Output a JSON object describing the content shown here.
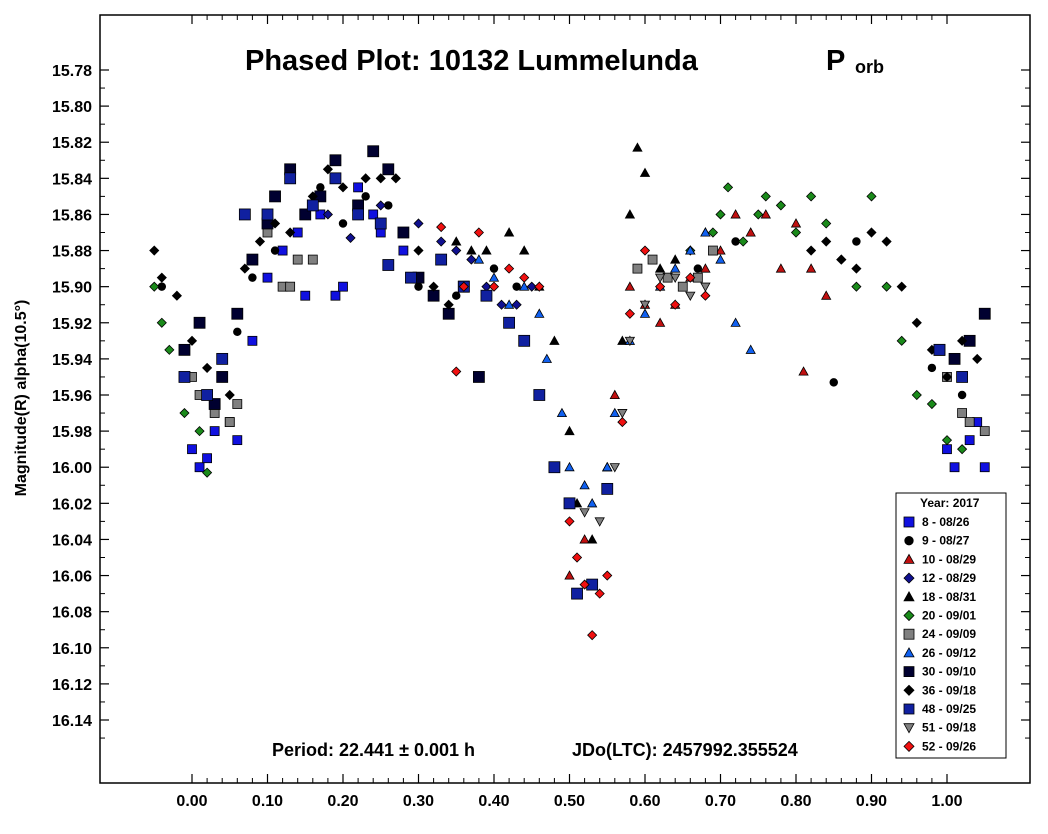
{
  "chart_data": {
    "type": "scatter",
    "title": "Phased Plot: 10132 Lummelunda",
    "title_symbol": "P",
    "title_symbol_sub": "orb",
    "xlabel": "",
    "ylabel": "Magnitude(R) alpha(10.5°)",
    "xlim": [
      -0.13,
      1.1
    ],
    "ylim": [
      16.165,
      15.757
    ],
    "y_inverted": true,
    "x_ticks": [
      "0.00",
      "0.10",
      "0.20",
      "0.30",
      "0.40",
      "0.50",
      "0.60",
      "0.70",
      "0.80",
      "0.90",
      "1.00"
    ],
    "y_ticks": [
      "15.78",
      "15.80",
      "15.82",
      "15.84",
      "15.86",
      "15.88",
      "15.90",
      "15.92",
      "15.94",
      "15.96",
      "15.98",
      "16.00",
      "16.02",
      "16.04",
      "16.06",
      "16.08",
      "16.10",
      "16.12",
      "16.14"
    ],
    "grid": false,
    "legend_position": "bottom-right",
    "legend_title": "Year: 2017",
    "period_text": "Period: 22.441 ± 0.001 h",
    "epoch_text": "JDo(LTC): 2457992.355524",
    "series": [
      {
        "name": "8 - 08/26",
        "marker": "square",
        "color": "#1010e0",
        "points": [
          [
            0.0,
            15.99
          ],
          [
            0.01,
            16.0
          ],
          [
            0.02,
            15.995
          ],
          [
            0.03,
            15.98
          ],
          [
            0.05,
            15.975
          ],
          [
            0.06,
            15.985
          ],
          [
            0.08,
            15.93
          ],
          [
            0.1,
            15.895
          ],
          [
            0.12,
            15.88
          ],
          [
            0.14,
            15.87
          ],
          [
            0.15,
            15.905
          ],
          [
            0.17,
            15.86
          ],
          [
            0.19,
            15.905
          ],
          [
            0.2,
            15.9
          ],
          [
            0.22,
            15.845
          ],
          [
            0.24,
            15.86
          ],
          [
            0.25,
            15.87
          ],
          [
            0.26,
            15.835
          ],
          [
            0.28,
            15.88
          ],
          [
            1.0,
            15.99
          ],
          [
            1.01,
            16.0
          ],
          [
            1.03,
            15.985
          ],
          [
            1.04,
            15.975
          ],
          [
            1.05,
            16.0
          ]
        ]
      },
      {
        "name": "9 - 08/27",
        "marker": "circle",
        "color": "#000000",
        "points": [
          [
            -0.04,
            15.9
          ],
          [
            -0.01,
            15.95
          ],
          [
            0.02,
            15.96
          ],
          [
            0.04,
            15.94
          ],
          [
            0.06,
            15.925
          ],
          [
            0.08,
            15.895
          ],
          [
            0.11,
            15.88
          ],
          [
            0.14,
            15.885
          ],
          [
            0.17,
            15.845
          ],
          [
            0.2,
            15.865
          ],
          [
            0.23,
            15.85
          ],
          [
            0.26,
            15.855
          ],
          [
            0.3,
            15.9
          ],
          [
            0.35,
            15.905
          ],
          [
            0.4,
            15.89
          ],
          [
            0.43,
            15.9
          ],
          [
            0.67,
            15.89
          ],
          [
            0.72,
            15.875
          ],
          [
            0.85,
            15.953
          ],
          [
            0.88,
            15.875
          ],
          [
            0.98,
            15.945
          ],
          [
            1.02,
            15.96
          ]
        ]
      },
      {
        "name": "10 - 08/29",
        "marker": "triangle-up",
        "color": "#c01010",
        "points": [
          [
            0.5,
            16.06
          ],
          [
            0.52,
            16.04
          ],
          [
            0.55,
            16.0
          ],
          [
            0.56,
            15.96
          ],
          [
            0.58,
            15.9
          ],
          [
            0.6,
            15.91
          ],
          [
            0.62,
            15.92
          ],
          [
            0.64,
            15.91
          ],
          [
            0.66,
            15.895
          ],
          [
            0.68,
            15.89
          ],
          [
            0.7,
            15.88
          ],
          [
            0.72,
            15.86
          ],
          [
            0.74,
            15.87
          ],
          [
            0.76,
            15.86
          ],
          [
            0.78,
            15.89
          ],
          [
            0.8,
            15.865
          ],
          [
            0.81,
            15.947
          ],
          [
            0.82,
            15.89
          ],
          [
            0.84,
            15.905
          ]
        ]
      },
      {
        "name": "12 - 08/29",
        "marker": "diamond",
        "color": "#101090",
        "points": [
          [
            0.18,
            15.86
          ],
          [
            0.21,
            15.873
          ],
          [
            0.25,
            15.855
          ],
          [
            0.3,
            15.865
          ],
          [
            0.33,
            15.875
          ],
          [
            0.35,
            15.88
          ],
          [
            0.37,
            15.885
          ],
          [
            0.39,
            15.9
          ],
          [
            0.41,
            15.91
          ],
          [
            0.43,
            15.91
          ],
          [
            0.45,
            15.9
          ]
        ]
      },
      {
        "name": "18 - 08/31",
        "marker": "triangle-up",
        "color": "#000000",
        "points": [
          [
            0.35,
            15.875
          ],
          [
            0.37,
            15.88
          ],
          [
            0.39,
            15.88
          ],
          [
            0.42,
            15.87
          ],
          [
            0.44,
            15.88
          ],
          [
            0.46,
            15.9
          ],
          [
            0.48,
            15.93
          ],
          [
            0.5,
            15.98
          ],
          [
            0.51,
            16.02
          ],
          [
            0.53,
            16.04
          ],
          [
            0.55,
            16.0
          ],
          [
            0.57,
            15.93
          ],
          [
            0.58,
            15.86
          ],
          [
            0.59,
            15.823
          ],
          [
            0.6,
            15.837
          ],
          [
            0.62,
            15.89
          ],
          [
            0.64,
            15.885
          ],
          [
            0.66,
            15.88
          ],
          [
            0.68,
            15.87
          ]
        ]
      },
      {
        "name": "20 - 09/01",
        "marker": "diamond",
        "color": "#1a8a1a",
        "points": [
          [
            -0.05,
            15.9
          ],
          [
            -0.04,
            15.92
          ],
          [
            -0.03,
            15.935
          ],
          [
            -0.01,
            15.97
          ],
          [
            0.01,
            15.98
          ],
          [
            0.02,
            16.003
          ],
          [
            0.66,
            15.88
          ],
          [
            0.69,
            15.87
          ],
          [
            0.7,
            15.86
          ],
          [
            0.71,
            15.845
          ],
          [
            0.73,
            15.875
          ],
          [
            0.75,
            15.86
          ],
          [
            0.76,
            15.85
          ],
          [
            0.78,
            15.855
          ],
          [
            0.8,
            15.87
          ],
          [
            0.82,
            15.85
          ],
          [
            0.84,
            15.865
          ],
          [
            0.86,
            15.885
          ],
          [
            0.88,
            15.9
          ],
          [
            0.9,
            15.85
          ],
          [
            0.92,
            15.9
          ],
          [
            0.94,
            15.93
          ],
          [
            0.96,
            15.96
          ],
          [
            0.98,
            15.965
          ],
          [
            1.0,
            15.985
          ],
          [
            1.02,
            15.99
          ]
        ]
      },
      {
        "name": "24 - 09/09",
        "marker": "square",
        "color": "#808080",
        "points": [
          [
            0.0,
            15.95
          ],
          [
            0.01,
            15.96
          ],
          [
            0.03,
            15.97
          ],
          [
            0.05,
            15.975
          ],
          [
            0.06,
            15.965
          ],
          [
            0.1,
            15.87
          ],
          [
            0.12,
            15.9
          ],
          [
            0.13,
            15.9
          ],
          [
            0.14,
            15.885
          ],
          [
            0.16,
            15.885
          ],
          [
            0.59,
            15.89
          ],
          [
            0.61,
            15.885
          ],
          [
            0.63,
            15.895
          ],
          [
            0.65,
            15.9
          ],
          [
            0.67,
            15.895
          ],
          [
            0.69,
            15.88
          ],
          [
            1.0,
            15.95
          ],
          [
            1.02,
            15.97
          ],
          [
            1.03,
            15.975
          ],
          [
            1.05,
            15.98
          ]
        ]
      },
      {
        "name": "26 - 09/12",
        "marker": "triangle-up",
        "color": "#1060f0",
        "points": [
          [
            0.38,
            15.885
          ],
          [
            0.4,
            15.895
          ],
          [
            0.42,
            15.91
          ],
          [
            0.44,
            15.9
          ],
          [
            0.46,
            15.915
          ],
          [
            0.47,
            15.94
          ],
          [
            0.49,
            15.97
          ],
          [
            0.5,
            16.0
          ],
          [
            0.52,
            16.01
          ],
          [
            0.53,
            16.02
          ],
          [
            0.55,
            16.0
          ],
          [
            0.56,
            15.97
          ],
          [
            0.58,
            15.93
          ],
          [
            0.6,
            15.915
          ],
          [
            0.62,
            15.9
          ],
          [
            0.64,
            15.89
          ],
          [
            0.66,
            15.88
          ],
          [
            0.68,
            15.87
          ],
          [
            0.7,
            15.885
          ],
          [
            0.72,
            15.92
          ],
          [
            0.74,
            15.935
          ]
        ]
      },
      {
        "name": "30 - 09/10",
        "marker": "square",
        "color": "#000030",
        "points": [
          [
            -0.01,
            15.935
          ],
          [
            0.01,
            15.92
          ],
          [
            0.03,
            15.965
          ],
          [
            0.04,
            15.95
          ],
          [
            0.06,
            15.915
          ],
          [
            0.08,
            15.885
          ],
          [
            0.1,
            15.865
          ],
          [
            0.11,
            15.85
          ],
          [
            0.13,
            15.835
          ],
          [
            0.15,
            15.86
          ],
          [
            0.17,
            15.85
          ],
          [
            0.19,
            15.83
          ],
          [
            0.22,
            15.855
          ],
          [
            0.24,
            15.825
          ],
          [
            0.26,
            15.835
          ],
          [
            0.28,
            15.87
          ],
          [
            0.3,
            15.895
          ],
          [
            0.32,
            15.905
          ],
          [
            0.34,
            15.915
          ],
          [
            0.36,
            15.9
          ],
          [
            0.38,
            15.95
          ],
          [
            0.99,
            15.935
          ],
          [
            1.01,
            15.94
          ],
          [
            1.03,
            15.93
          ],
          [
            1.05,
            15.915
          ]
        ]
      },
      {
        "name": "36 - 09/18",
        "marker": "diamond",
        "color": "#000000",
        "points": [
          [
            -0.05,
            15.88
          ],
          [
            -0.04,
            15.895
          ],
          [
            -0.02,
            15.905
          ],
          [
            0.0,
            15.93
          ],
          [
            0.02,
            15.945
          ],
          [
            0.05,
            15.96
          ],
          [
            0.07,
            15.89
          ],
          [
            0.09,
            15.875
          ],
          [
            0.11,
            15.865
          ],
          [
            0.13,
            15.87
          ],
          [
            0.16,
            15.85
          ],
          [
            0.18,
            15.835
          ],
          [
            0.2,
            15.845
          ],
          [
            0.23,
            15.84
          ],
          [
            0.25,
            15.84
          ],
          [
            0.27,
            15.84
          ],
          [
            0.3,
            15.88
          ],
          [
            0.32,
            15.9
          ],
          [
            0.34,
            15.91
          ],
          [
            0.82,
            15.88
          ],
          [
            0.84,
            15.875
          ],
          [
            0.86,
            15.885
          ],
          [
            0.88,
            15.89
          ],
          [
            0.9,
            15.87
          ],
          [
            0.92,
            15.875
          ],
          [
            0.94,
            15.9
          ],
          [
            0.96,
            15.92
          ],
          [
            0.98,
            15.935
          ],
          [
            1.0,
            15.95
          ],
          [
            1.02,
            15.93
          ],
          [
            1.04,
            15.94
          ]
        ]
      },
      {
        "name": "48 - 09/25",
        "marker": "square",
        "color": "#1020a0",
        "points": [
          [
            -0.01,
            15.95
          ],
          [
            0.02,
            15.96
          ],
          [
            0.04,
            15.94
          ],
          [
            0.07,
            15.86
          ],
          [
            0.1,
            15.86
          ],
          [
            0.13,
            15.84
          ],
          [
            0.16,
            15.855
          ],
          [
            0.19,
            15.84
          ],
          [
            0.22,
            15.86
          ],
          [
            0.25,
            15.865
          ],
          [
            0.26,
            15.888
          ],
          [
            0.29,
            15.895
          ],
          [
            0.33,
            15.885
          ],
          [
            0.36,
            15.9
          ],
          [
            0.39,
            15.905
          ],
          [
            0.42,
            15.92
          ],
          [
            0.44,
            15.93
          ],
          [
            0.46,
            15.96
          ],
          [
            0.48,
            16.0
          ],
          [
            0.5,
            16.02
          ],
          [
            0.51,
            16.07
          ],
          [
            0.53,
            16.065
          ],
          [
            0.55,
            16.012
          ],
          [
            0.99,
            15.935
          ],
          [
            1.02,
            15.95
          ]
        ]
      },
      {
        "name": "51 - 09/18",
        "marker": "triangle-down",
        "color": "#808080",
        "points": [
          [
            0.52,
            16.025
          ],
          [
            0.54,
            16.03
          ],
          [
            0.56,
            16.0
          ],
          [
            0.57,
            15.97
          ],
          [
            0.58,
            15.93
          ],
          [
            0.6,
            15.91
          ],
          [
            0.62,
            15.895
          ],
          [
            0.64,
            15.895
          ],
          [
            0.66,
            15.905
          ],
          [
            0.68,
            15.9
          ]
        ]
      },
      {
        "name": "52 - 09/26",
        "marker": "diamond",
        "color": "#f01010",
        "points": [
          [
            0.33,
            15.867
          ],
          [
            0.35,
            15.947
          ],
          [
            0.36,
            15.9
          ],
          [
            0.38,
            15.87
          ],
          [
            0.4,
            15.9
          ],
          [
            0.42,
            15.89
          ],
          [
            0.44,
            15.895
          ],
          [
            0.46,
            15.9
          ],
          [
            0.5,
            16.03
          ],
          [
            0.51,
            16.05
          ],
          [
            0.52,
            16.065
          ],
          [
            0.53,
            16.093
          ],
          [
            0.54,
            16.07
          ],
          [
            0.55,
            16.06
          ],
          [
            0.57,
            15.975
          ],
          [
            0.58,
            15.915
          ],
          [
            0.6,
            15.88
          ],
          [
            0.62,
            15.9
          ],
          [
            0.64,
            15.91
          ],
          [
            0.66,
            15.895
          ],
          [
            0.68,
            15.905
          ]
        ]
      }
    ]
  }
}
